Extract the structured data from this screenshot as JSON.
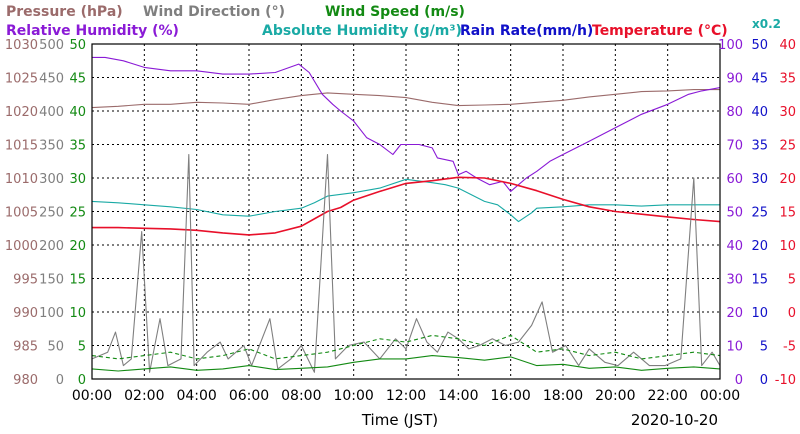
{
  "chart_data": {
    "type": "line",
    "date": "2020-10-20",
    "xlabel": "Time (JST)",
    "x_ticks": [
      "00:00",
      "02:00",
      "04:00",
      "06:00",
      "08:00",
      "10:00",
      "12:00",
      "14:00",
      "16:00",
      "18:00",
      "20:00",
      "22:00",
      "00:00"
    ],
    "x_range_hours": [
      0,
      24
    ],
    "grid": true,
    "legend": {
      "pressure": {
        "label": "Pressure (hPa)",
        "color": "#9b6b6b"
      },
      "wind_direction": {
        "label": "Wind Direction (°)",
        "color": "#7f7f7f"
      },
      "wind_speed": {
        "label": "Wind Speed (m/s)",
        "color": "#138a13"
      },
      "relative_humidity": {
        "label": "Relative Humidity (%)",
        "color": "#8a1ad6"
      },
      "absolute_humidity": {
        "label": "Absolute Humidity (g/m³)",
        "color": "#1aaaa5"
      },
      "rain_rate": {
        "label": "Rain Rate(mm/h)",
        "color": "#1010c8"
      },
      "temperature": {
        "label": "Temperature (°C)",
        "color": "#e8102a"
      },
      "abs_humidity_scale": {
        "label": "x0.2",
        "color": "#1aaaa5"
      }
    },
    "axes": {
      "pressure": {
        "range": [
          980,
          1030
        ],
        "ticks": [
          "1030",
          "1025",
          "1020",
          "1015",
          "1010",
          "1005",
          "1000",
          "995",
          "990",
          "985",
          "980"
        ],
        "color": "#9b6b6b"
      },
      "wind_direction": {
        "range": [
          0,
          500
        ],
        "ticks": [
          "500",
          "450",
          "400",
          "350",
          "300",
          "250",
          "200",
          "150",
          "100",
          "50",
          "0"
        ],
        "color": "#7f7f7f"
      },
      "wind_speed": {
        "range": [
          0,
          50
        ],
        "ticks": [
          "50",
          "45",
          "40",
          "35",
          "30",
          "25",
          "20",
          "15",
          "10",
          "5",
          "0"
        ],
        "color": "#138a13"
      },
      "relative_humidity": {
        "range": [
          0,
          100
        ],
        "ticks": [
          "100",
          "90",
          "80",
          "70",
          "60",
          "50",
          "40",
          "30",
          "20",
          "10",
          "0"
        ],
        "color": "#8a1ad6"
      },
      "rain_rate": {
        "range": [
          0,
          50
        ],
        "ticks": [
          "50",
          "45",
          "40",
          "35",
          "30",
          "25",
          "20",
          "15",
          "10",
          "5",
          "0"
        ],
        "color": "#1010c8"
      },
      "temperature": {
        "range": [
          -10,
          40
        ],
        "ticks": [
          "40",
          "35",
          "30",
          "25",
          "20",
          "15",
          "10",
          "5",
          "0",
          "-5",
          "-10"
        ],
        "color": "#e8102a"
      }
    },
    "series": [
      {
        "key": "pressure",
        "axis": "pressure",
        "color": "#9b6b6b",
        "points": [
          [
            0,
            1020.5
          ],
          [
            1,
            1020.7
          ],
          [
            2,
            1021.0
          ],
          [
            3,
            1021.0
          ],
          [
            4,
            1021.3
          ],
          [
            5,
            1021.2
          ],
          [
            6,
            1021.0
          ],
          [
            7,
            1021.7
          ],
          [
            8,
            1022.3
          ],
          [
            9,
            1022.7
          ],
          [
            10,
            1022.5
          ],
          [
            11,
            1022.3
          ],
          [
            12,
            1022.0
          ],
          [
            13,
            1021.3
          ],
          [
            14,
            1020.8
          ],
          [
            15,
            1020.9
          ],
          [
            16,
            1021.0
          ],
          [
            17,
            1021.3
          ],
          [
            18,
            1021.6
          ],
          [
            19,
            1022.1
          ],
          [
            20,
            1022.5
          ],
          [
            21,
            1022.9
          ],
          [
            22,
            1023.0
          ],
          [
            23,
            1023.2
          ],
          [
            24,
            1023.2
          ]
        ]
      },
      {
        "key": "relative_humidity",
        "axis": "relative_humidity",
        "color": "#8a1ad6",
        "points": [
          [
            0,
            96
          ],
          [
            0.5,
            96
          ],
          [
            1.2,
            95
          ],
          [
            2.0,
            93
          ],
          [
            3.0,
            92
          ],
          [
            4.0,
            92
          ],
          [
            5.0,
            91
          ],
          [
            5.5,
            91
          ],
          [
            6.0,
            91
          ],
          [
            7.0,
            91.5
          ],
          [
            7.9,
            94
          ],
          [
            8.3,
            91.5
          ],
          [
            8.8,
            85
          ],
          [
            9.2,
            82
          ],
          [
            9.5,
            80
          ],
          [
            10.0,
            77
          ],
          [
            10.5,
            72
          ],
          [
            11.0,
            70
          ],
          [
            11.5,
            67
          ],
          [
            11.8,
            70
          ],
          [
            12.5,
            70
          ],
          [
            13.0,
            69
          ],
          [
            13.2,
            66
          ],
          [
            13.8,
            65
          ],
          [
            14.0,
            61
          ],
          [
            14.3,
            62
          ],
          [
            14.7,
            60
          ],
          [
            15.2,
            58
          ],
          [
            15.7,
            59
          ],
          [
            16.0,
            56
          ],
          [
            16.3,
            58
          ],
          [
            16.6,
            60
          ],
          [
            17.0,
            62
          ],
          [
            17.5,
            65
          ],
          [
            18.0,
            67
          ],
          [
            19.0,
            71
          ],
          [
            20.0,
            75
          ],
          [
            21.0,
            79
          ],
          [
            22.0,
            82
          ],
          [
            22.8,
            85
          ],
          [
            23.3,
            86
          ],
          [
            24,
            87
          ]
        ]
      },
      {
        "key": "absolute_humidity",
        "axis": "wind_speed",
        "color": "#1aaaa5",
        "points": [
          [
            0,
            26.5
          ],
          [
            1,
            26.3
          ],
          [
            2,
            26.0
          ],
          [
            3,
            25.7
          ],
          [
            4,
            25.3
          ],
          [
            5,
            24.5
          ],
          [
            6,
            24.3
          ],
          [
            7,
            25.0
          ],
          [
            8,
            25.5
          ],
          [
            8.5,
            26.3
          ],
          [
            9,
            27.3
          ],
          [
            10,
            27.8
          ],
          [
            11,
            28.5
          ],
          [
            12,
            29.8
          ],
          [
            13,
            29.3
          ],
          [
            13.5,
            29.0
          ],
          [
            14,
            28.5
          ],
          [
            14.5,
            27.5
          ],
          [
            15,
            26.5
          ],
          [
            15.5,
            26.0
          ],
          [
            16,
            24.5
          ],
          [
            16.3,
            23.5
          ],
          [
            16.8,
            24.8
          ],
          [
            17,
            25.5
          ],
          [
            18,
            25.7
          ],
          [
            19,
            26.0
          ],
          [
            20,
            26.0
          ],
          [
            21,
            25.8
          ],
          [
            22,
            26.0
          ],
          [
            23,
            26.0
          ],
          [
            24,
            26.0
          ]
        ]
      },
      {
        "key": "temperature",
        "axis": "temperature",
        "color": "#e8102a",
        "points": [
          [
            0,
            12.6
          ],
          [
            1,
            12.6
          ],
          [
            2,
            12.5
          ],
          [
            3,
            12.4
          ],
          [
            4,
            12.2
          ],
          [
            5,
            11.8
          ],
          [
            6,
            11.5
          ],
          [
            7,
            11.8
          ],
          [
            8,
            12.8
          ],
          [
            9,
            15.0
          ],
          [
            9.5,
            15.6
          ],
          [
            10,
            16.7
          ],
          [
            11,
            18.0
          ],
          [
            12,
            19.2
          ],
          [
            13,
            19.6
          ],
          [
            14,
            20.1
          ],
          [
            15,
            20.0
          ],
          [
            16,
            19.2
          ],
          [
            17,
            18.1
          ],
          [
            18,
            16.8
          ],
          [
            19,
            15.7
          ],
          [
            20,
            15.0
          ],
          [
            21,
            14.6
          ],
          [
            22,
            14.2
          ],
          [
            23,
            13.8
          ],
          [
            24,
            13.5
          ]
        ]
      },
      {
        "key": "wind_direction",
        "axis": "wind_direction",
        "color": "#7f7f7f",
        "points": [
          [
            0,
            30
          ],
          [
            0.6,
            40
          ],
          [
            0.9,
            70
          ],
          [
            1.2,
            20
          ],
          [
            1.5,
            30
          ],
          [
            1.9,
            220
          ],
          [
            2.2,
            10
          ],
          [
            2.6,
            90
          ],
          [
            2.9,
            20
          ],
          [
            3.4,
            30
          ],
          [
            3.7,
            335
          ],
          [
            3.9,
            20
          ],
          [
            4.4,
            40
          ],
          [
            4.9,
            55
          ],
          [
            5.2,
            30
          ],
          [
            5.8,
            50
          ],
          [
            6.1,
            20
          ],
          [
            6.8,
            90
          ],
          [
            7.1,
            15
          ],
          [
            7.6,
            30
          ],
          [
            8.0,
            50
          ],
          [
            8.5,
            10
          ],
          [
            9.0,
            335
          ],
          [
            9.3,
            30
          ],
          [
            9.8,
            50
          ],
          [
            10.4,
            55
          ],
          [
            11.0,
            30
          ],
          [
            11.6,
            60
          ],
          [
            12.0,
            45
          ],
          [
            12.4,
            90
          ],
          [
            12.8,
            55
          ],
          [
            13.2,
            40
          ],
          [
            13.6,
            70
          ],
          [
            14.0,
            60
          ],
          [
            14.4,
            45
          ],
          [
            14.8,
            50
          ],
          [
            15.3,
            60
          ],
          [
            15.8,
            50
          ],
          [
            16.3,
            55
          ],
          [
            16.8,
            80
          ],
          [
            17.2,
            115
          ],
          [
            17.6,
            40
          ],
          [
            18.1,
            50
          ],
          [
            18.6,
            20
          ],
          [
            19.0,
            45
          ],
          [
            19.6,
            25
          ],
          [
            20.1,
            20
          ],
          [
            20.7,
            40
          ],
          [
            21.3,
            20
          ],
          [
            21.9,
            20
          ],
          [
            22.5,
            30
          ],
          [
            23.0,
            300
          ],
          [
            23.3,
            20
          ],
          [
            23.7,
            40
          ],
          [
            24,
            20
          ]
        ]
      },
      {
        "key": "wind_speed_max",
        "axis": "wind_speed",
        "color": "#138a13",
        "dashed": true,
        "points": [
          [
            0,
            3.5
          ],
          [
            1,
            3.0
          ],
          [
            2,
            3.5
          ],
          [
            3,
            4.0
          ],
          [
            4,
            3.0
          ],
          [
            5,
            3.5
          ],
          [
            6,
            4.5
          ],
          [
            7,
            3.0
          ],
          [
            8,
            3.5
          ],
          [
            9,
            4.0
          ],
          [
            10,
            5.0
          ],
          [
            11,
            6.0
          ],
          [
            12,
            5.5
          ],
          [
            13,
            6.5
          ],
          [
            14,
            6.0
          ],
          [
            15,
            5.0
          ],
          [
            16,
            6.5
          ],
          [
            17,
            4.0
          ],
          [
            18,
            4.5
          ],
          [
            19,
            3.5
          ],
          [
            20,
            4.0
          ],
          [
            21,
            3.0
          ],
          [
            22,
            3.5
          ],
          [
            23,
            4.0
          ],
          [
            24,
            3.5
          ]
        ]
      },
      {
        "key": "wind_speed",
        "axis": "wind_speed",
        "color": "#138a13",
        "points": [
          [
            0,
            1.5
          ],
          [
            1,
            1.2
          ],
          [
            2,
            1.5
          ],
          [
            3,
            1.8
          ],
          [
            4,
            1.3
          ],
          [
            5,
            1.5
          ],
          [
            6,
            2.0
          ],
          [
            7,
            1.4
          ],
          [
            8,
            1.6
          ],
          [
            9,
            1.8
          ],
          [
            10,
            2.5
          ],
          [
            11,
            3.0
          ],
          [
            12,
            3.0
          ],
          [
            13,
            3.5
          ],
          [
            14,
            3.2
          ],
          [
            15,
            2.8
          ],
          [
            16,
            3.3
          ],
          [
            17,
            2.0
          ],
          [
            18,
            2.2
          ],
          [
            19,
            1.6
          ],
          [
            20,
            1.8
          ],
          [
            21,
            1.3
          ],
          [
            22,
            1.6
          ],
          [
            23,
            1.8
          ],
          [
            24,
            1.5
          ]
        ]
      },
      {
        "key": "rain_rate",
        "axis": "rain_rate",
        "color": "#1010c8",
        "points": [
          [
            0,
            0
          ],
          [
            24,
            0
          ]
        ]
      }
    ]
  }
}
